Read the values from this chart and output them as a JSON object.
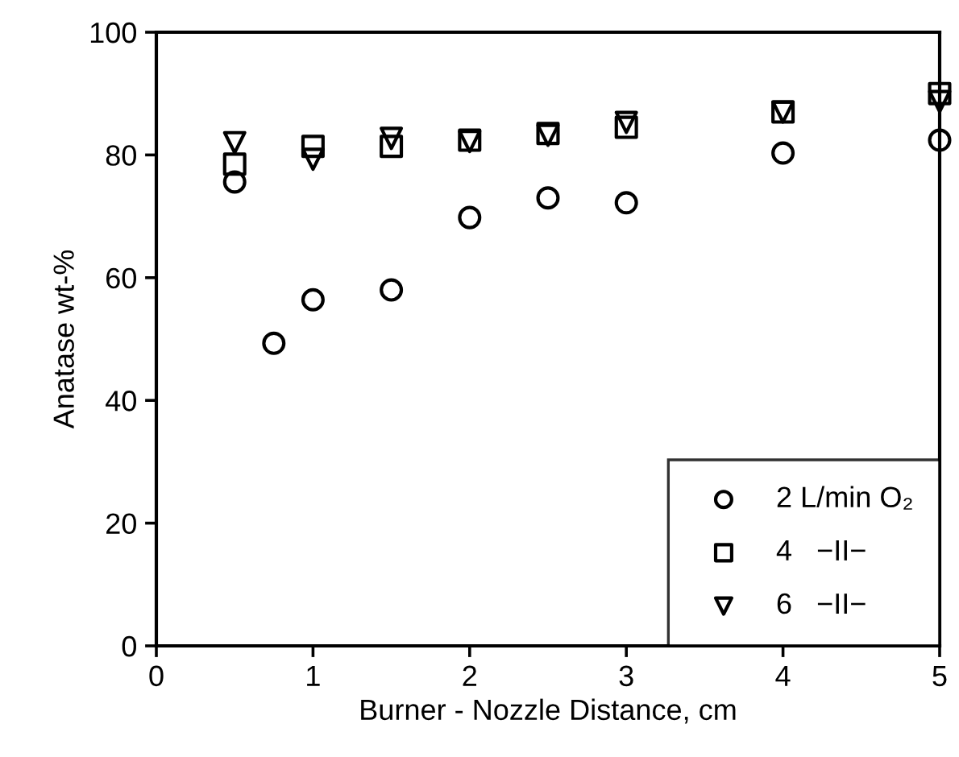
{
  "chart_data": {
    "type": "scatter",
    "xlabel": "Burner - Nozzle Distance, cm",
    "ylabel": "Anatase wt-%",
    "xlim": [
      0,
      5
    ],
    "xticks": [
      0,
      1,
      2,
      3,
      4,
      5
    ],
    "ylim": [
      0,
      100
    ],
    "yticks": [
      0,
      20,
      40,
      60,
      80,
      100
    ],
    "grid": false,
    "legend": "bottom right",
    "series": [
      {
        "name": "2 L/min O₂",
        "color": "#000000",
        "marker": "circle",
        "x": [
          0.5,
          0.75,
          1,
          1.5,
          2,
          2.5,
          3,
          4,
          5
        ],
        "values": [
          75.6,
          49.3,
          56.4,
          58,
          69.8,
          73,
          72.2,
          80.3,
          82.4
        ]
      },
      {
        "name": "4   −II−",
        "color": "#000000",
        "marker": "square",
        "x": [
          0.5,
          1,
          1.5,
          2,
          2.5,
          3,
          4,
          5
        ],
        "values": [
          78.5,
          81.4,
          81.4,
          82.4,
          83.5,
          84.5,
          87,
          90
        ]
      },
      {
        "name": "6   −II−",
        "color": "#000000",
        "marker": "triangle",
        "x": [
          0.5,
          1,
          1.5,
          2,
          2.5,
          3,
          4,
          5
        ],
        "values": [
          82,
          79.3,
          82.7,
          82.2,
          83.2,
          85.3,
          87,
          88.7
        ]
      }
    ]
  }
}
